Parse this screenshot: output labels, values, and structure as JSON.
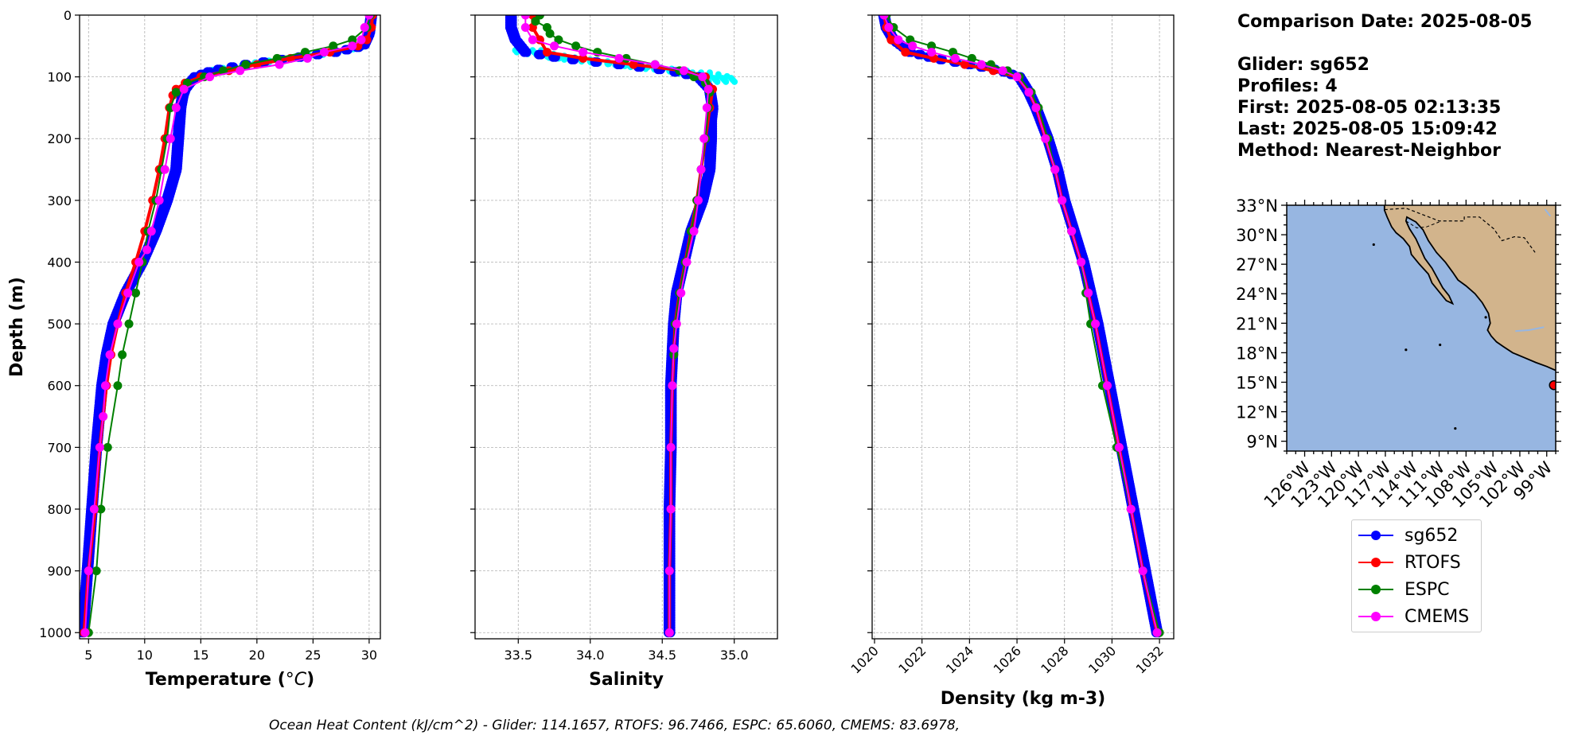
{
  "info": {
    "comparison_date": "Comparison Date: 2025-08-05",
    "glider": "Glider: sg652",
    "profiles": "Profiles: 4",
    "first": "First: 2025-08-05 02:13:35",
    "last": "Last: 2025-08-05 15:09:42",
    "method": "Method: Nearest-Neighbor"
  },
  "footer": "Ocean Heat Content (kJ/cm^2) - Glider: 114.1657,  RTOFS: 96.7466,  ESPC: 65.6060,  CMEMS: 83.6978,",
  "colors": {
    "sg652": "#0000ff",
    "sg652_raw": "#00ffff",
    "RTOFS": "#ff0000",
    "ESPC": "#008000",
    "CMEMS": "#ff00ff",
    "ocean": "#97b6e1",
    "land": "#d2b48c"
  },
  "legend": [
    {
      "label": "sg652",
      "color": "#0000ff"
    },
    {
      "label": "RTOFS",
      "color": "#ff0000"
    },
    {
      "label": "ESPC",
      "color": "#008000"
    },
    {
      "label": "CMEMS",
      "color": "#ff00ff"
    }
  ],
  "chart_data": [
    {
      "type": "line",
      "xlabel": "Temperature (°C)",
      "ylabel": "Depth (m)",
      "xlim": [
        4.2,
        31
      ],
      "ylim": [
        1010,
        0
      ],
      "xticks": [
        5,
        10,
        15,
        20,
        25,
        30
      ],
      "yticks": [
        0,
        100,
        200,
        300,
        400,
        500,
        600,
        700,
        800,
        900,
        1000
      ],
      "grid": true,
      "series": [
        {
          "name": "sg652",
          "depth": [
            0,
            30,
            50,
            60,
            70,
            80,
            90,
            100,
            110,
            120,
            130,
            150,
            200,
            250,
            300,
            350,
            400,
            450,
            500,
            550,
            600,
            700,
            800,
            900,
            1000
          ],
          "values": [
            30.2,
            30.0,
            29.5,
            27.0,
            23.0,
            19.0,
            16.0,
            14.5,
            14.0,
            13.6,
            13.4,
            13.2,
            13.0,
            12.8,
            12.0,
            11.0,
            9.8,
            8.3,
            7.2,
            6.6,
            6.2,
            5.7,
            5.3,
            4.9,
            4.5
          ]
        },
        {
          "name": "RTOFS",
          "depth": [
            0,
            20,
            40,
            50,
            60,
            70,
            80,
            90,
            100,
            110,
            120,
            130,
            150,
            200,
            250,
            300,
            350,
            400,
            450,
            500,
            550,
            600,
            650,
            700,
            800,
            900,
            1000
          ],
          "values": [
            30.3,
            30.2,
            29.8,
            29.0,
            26.5,
            23.0,
            20.0,
            17.5,
            15.0,
            13.6,
            12.8,
            12.5,
            12.2,
            11.8,
            11.3,
            10.7,
            10.0,
            9.2,
            8.3,
            7.6,
            7.0,
            6.6,
            6.3,
            6.0,
            5.6,
            5.0,
            4.6
          ]
        },
        {
          "name": "ESPC",
          "depth": [
            0,
            20,
            40,
            50,
            60,
            70,
            80,
            90,
            100,
            110,
            125,
            150,
            200,
            250,
            300,
            350,
            400,
            450,
            500,
            550,
            600,
            700,
            800,
            900,
            1000
          ],
          "values": [
            30.1,
            29.8,
            28.5,
            26.8,
            24.3,
            21.8,
            19.0,
            17.0,
            15.3,
            13.8,
            12.8,
            12.3,
            12.0,
            11.5,
            11.0,
            10.3,
            9.8,
            9.2,
            8.6,
            8.0,
            7.6,
            6.7,
            6.1,
            5.7,
            5.0
          ]
        },
        {
          "name": "CMEMS",
          "depth": [
            0,
            20,
            40,
            50,
            60,
            70,
            80,
            90,
            100,
            120,
            150,
            200,
            250,
            300,
            350,
            380,
            400,
            450,
            500,
            550,
            600,
            650,
            700,
            800,
            900,
            1000
          ],
          "values": [
            30.0,
            29.6,
            29.3,
            28.5,
            26.0,
            24.5,
            22.0,
            18.5,
            15.8,
            13.5,
            12.8,
            12.3,
            11.8,
            11.3,
            10.6,
            10.2,
            9.5,
            8.5,
            7.6,
            6.9,
            6.5,
            6.3,
            6.0,
            5.5,
            5.0,
            4.7
          ]
        }
      ]
    },
    {
      "type": "line",
      "xlabel": "Salinity",
      "ylabel": "",
      "xlim": [
        33.2,
        35.3
      ],
      "ylim": [
        1010,
        0
      ],
      "xticks": [
        33.5,
        34.0,
        34.5,
        35.0
      ],
      "grid": true,
      "series": [
        {
          "name": "sg652",
          "depth": [
            0,
            20,
            40,
            60,
            70,
            80,
            90,
            100,
            120,
            150,
            170,
            200,
            250,
            300,
            350,
            400,
            450,
            500,
            550,
            600,
            700,
            800,
            900,
            1000
          ],
          "values": [
            33.45,
            33.45,
            33.48,
            33.55,
            33.8,
            34.2,
            34.55,
            34.75,
            34.83,
            34.85,
            34.84,
            34.84,
            34.83,
            34.78,
            34.7,
            34.65,
            34.6,
            34.58,
            34.57,
            34.56,
            34.56,
            34.55,
            34.55,
            34.55
          ]
        },
        {
          "name": "RTOFS",
          "depth": [
            0,
            20,
            40,
            60,
            70,
            80,
            90,
            100,
            120,
            150,
            200,
            250,
            300,
            350,
            400,
            450,
            500,
            550,
            600,
            700,
            800,
            900,
            1000
          ],
          "values": [
            33.6,
            33.6,
            33.65,
            33.7,
            33.95,
            34.3,
            34.65,
            34.8,
            34.85,
            34.83,
            34.8,
            34.77,
            34.74,
            34.7,
            34.66,
            34.62,
            34.59,
            34.58,
            34.57,
            34.56,
            34.56,
            34.55,
            34.55
          ]
        },
        {
          "name": "ESPC",
          "depth": [
            0,
            10,
            20,
            30,
            40,
            50,
            60,
            70,
            80,
            90,
            100,
            110,
            125,
            150,
            200,
            250,
            300,
            350,
            400,
            450,
            500,
            550,
            600,
            700,
            800,
            900,
            1000
          ],
          "values": [
            33.65,
            33.62,
            33.7,
            33.72,
            33.78,
            33.9,
            34.05,
            34.25,
            34.45,
            34.62,
            34.72,
            34.8,
            34.83,
            34.82,
            34.8,
            34.77,
            34.74,
            34.7,
            34.66,
            34.62,
            34.59,
            34.58,
            34.57,
            34.56,
            34.56,
            34.55,
            34.55
          ]
        },
        {
          "name": "CMEMS",
          "depth": [
            0,
            20,
            40,
            50,
            60,
            70,
            80,
            90,
            100,
            120,
            150,
            200,
            250,
            300,
            350,
            400,
            450,
            500,
            540,
            600,
            700,
            800,
            900,
            1000
          ],
          "values": [
            33.55,
            33.55,
            33.6,
            33.75,
            33.95,
            34.2,
            34.45,
            34.65,
            34.78,
            34.82,
            34.81,
            34.79,
            34.77,
            34.75,
            34.72,
            34.67,
            34.63,
            34.6,
            34.58,
            34.57,
            34.56,
            34.56,
            34.55,
            34.55
          ]
        }
      ]
    },
    {
      "type": "line",
      "xlabel": "Density (kg m-3)",
      "ylabel": "",
      "xlim": [
        1019.9,
        1032.6
      ],
      "ylim": [
        1010,
        0
      ],
      "xticks": [
        1020,
        1022,
        1024,
        1026,
        1028,
        1030,
        1032
      ],
      "grid": true,
      "series": [
        {
          "name": "sg652",
          "depth": [
            0,
            20,
            40,
            60,
            70,
            80,
            90,
            100,
            125,
            150,
            200,
            250,
            300,
            350,
            400,
            450,
            500,
            600,
            700,
            800,
            900,
            1000
          ],
          "values": [
            1020.4,
            1020.5,
            1020.8,
            1021.5,
            1022.5,
            1024.0,
            1025.3,
            1026.1,
            1026.5,
            1026.8,
            1027.3,
            1027.7,
            1028.0,
            1028.4,
            1028.8,
            1029.1,
            1029.4,
            1029.9,
            1030.4,
            1030.9,
            1031.4,
            1031.9
          ]
        },
        {
          "name": "RTOFS",
          "depth": [
            0,
            20,
            40,
            60,
            70,
            80,
            90,
            100,
            125,
            150,
            200,
            250,
            300,
            350,
            400,
            450,
            500,
            600,
            700,
            800,
            900,
            1000
          ],
          "values": [
            1020.4,
            1020.5,
            1020.7,
            1021.3,
            1022.5,
            1023.8,
            1025.0,
            1026.0,
            1026.5,
            1026.8,
            1027.2,
            1027.6,
            1027.9,
            1028.3,
            1028.7,
            1029.0,
            1029.3,
            1029.8,
            1030.3,
            1030.8,
            1031.3,
            1031.9
          ]
        },
        {
          "name": "ESPC",
          "depth": [
            0,
            20,
            40,
            50,
            60,
            70,
            80,
            90,
            100,
            125,
            150,
            200,
            250,
            300,
            350,
            400,
            450,
            500,
            600,
            700,
            800,
            900,
            1000
          ],
          "values": [
            1020.5,
            1020.8,
            1021.5,
            1022.4,
            1023.3,
            1024.1,
            1024.9,
            1025.6,
            1026.1,
            1026.6,
            1026.9,
            1027.3,
            1027.6,
            1027.9,
            1028.3,
            1028.7,
            1028.9,
            1029.1,
            1029.6,
            1030.2,
            1030.8,
            1031.3,
            1032.0
          ]
        },
        {
          "name": "CMEMS",
          "depth": [
            0,
            20,
            40,
            50,
            60,
            70,
            80,
            90,
            100,
            125,
            150,
            200,
            250,
            300,
            350,
            400,
            450,
            500,
            600,
            700,
            800,
            900,
            1000
          ],
          "values": [
            1020.4,
            1020.6,
            1021.0,
            1021.6,
            1022.4,
            1023.4,
            1024.5,
            1025.4,
            1026.0,
            1026.5,
            1026.8,
            1027.2,
            1027.6,
            1027.9,
            1028.3,
            1028.7,
            1029.0,
            1029.3,
            1029.8,
            1030.3,
            1030.8,
            1031.3,
            1031.9
          ]
        }
      ]
    },
    {
      "type": "map",
      "title": "",
      "xlim": [
        -128,
        -98
      ],
      "ylim": [
        8,
        33
      ],
      "xticks": [
        "126°W",
        "123°W",
        "120°W",
        "117°W",
        "114°W",
        "111°W",
        "108°W",
        "105°W",
        "102°W",
        "99°W"
      ],
      "yticks": [
        "33°N",
        "30°N",
        "27°N",
        "24°N",
        "21°N",
        "18°N",
        "15°N",
        "12°N",
        "9°N"
      ],
      "xtick_values": [
        -126,
        -123,
        -120,
        -117,
        -114,
        -111,
        -108,
        -105,
        -102,
        -99
      ],
      "ytick_values": [
        33,
        30,
        27,
        24,
        21,
        18,
        15,
        12,
        9
      ],
      "glider_position": {
        "lon": -98.2,
        "lat": 14.7
      }
    }
  ]
}
